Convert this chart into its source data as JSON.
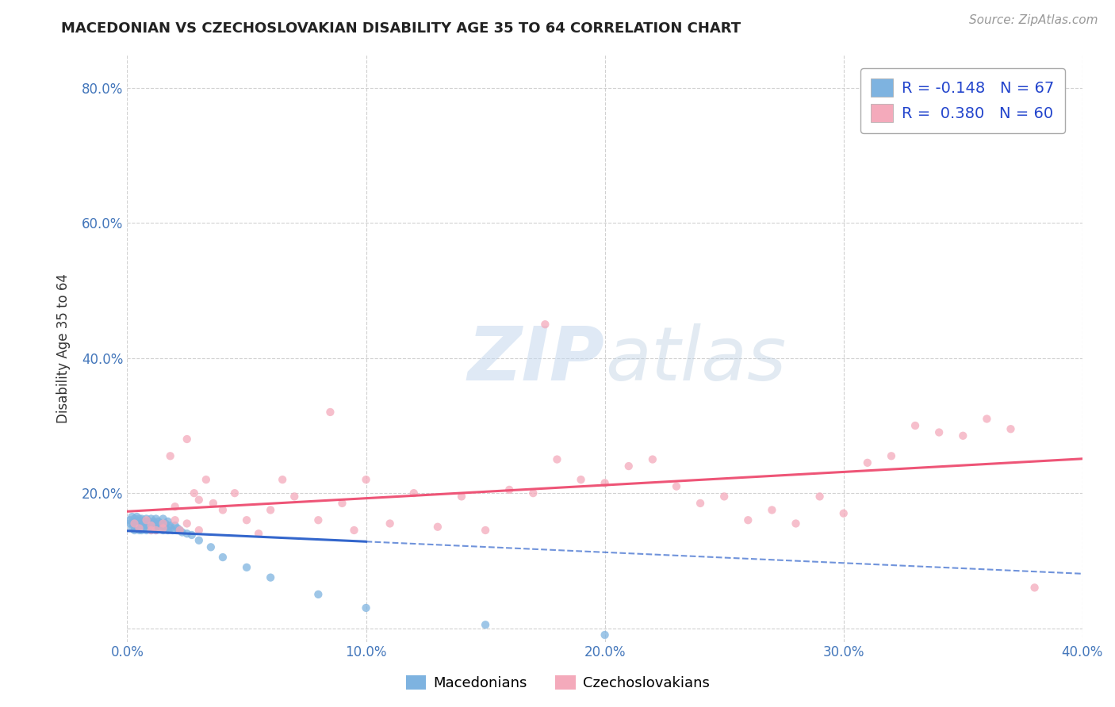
{
  "title": "MACEDONIAN VS CZECHOSLOVAKIAN DISABILITY AGE 35 TO 64 CORRELATION CHART",
  "source": "Source: ZipAtlas.com",
  "ylabel": "Disability Age 35 to 64",
  "xlabel": "",
  "xlim": [
    0.0,
    0.4
  ],
  "ylim": [
    -0.02,
    0.85
  ],
  "xtick_labels": [
    "0.0%",
    "10.0%",
    "20.0%",
    "30.0%",
    "40.0%"
  ],
  "xtick_vals": [
    0.0,
    0.1,
    0.2,
    0.3,
    0.4
  ],
  "ytick_labels": [
    "",
    "20.0%",
    "40.0%",
    "60.0%",
    "80.0%"
  ],
  "ytick_vals": [
    0.0,
    0.2,
    0.4,
    0.6,
    0.8
  ],
  "macedonian_color": "#7EB3E0",
  "czechoslovakian_color": "#F4AABB",
  "macedonian_R": -0.148,
  "macedonian_N": 67,
  "czechoslovakian_R": 0.38,
  "czechoslovakian_N": 60,
  "background_color": "#FFFFFF",
  "grid_color": "#CCCCCC",
  "mac_trend_color": "#3366CC",
  "cz_trend_color": "#EE5577",
  "macedonian_x": [
    0.001,
    0.001,
    0.002,
    0.002,
    0.002,
    0.003,
    0.003,
    0.003,
    0.003,
    0.004,
    0.004,
    0.004,
    0.004,
    0.005,
    0.005,
    0.005,
    0.005,
    0.006,
    0.006,
    0.006,
    0.006,
    0.007,
    0.007,
    0.007,
    0.008,
    0.008,
    0.008,
    0.009,
    0.009,
    0.009,
    0.01,
    0.01,
    0.01,
    0.011,
    0.011,
    0.011,
    0.012,
    0.012,
    0.012,
    0.013,
    0.013,
    0.014,
    0.014,
    0.015,
    0.015,
    0.016,
    0.016,
    0.017,
    0.017,
    0.018,
    0.018,
    0.019,
    0.02,
    0.021,
    0.022,
    0.023,
    0.025,
    0.027,
    0.03,
    0.035,
    0.04,
    0.05,
    0.06,
    0.08,
    0.1,
    0.15,
    0.2
  ],
  "macedonian_y": [
    0.155,
    0.16,
    0.148,
    0.155,
    0.165,
    0.15,
    0.158,
    0.162,
    0.145,
    0.152,
    0.158,
    0.165,
    0.148,
    0.155,
    0.162,
    0.145,
    0.158,
    0.15,
    0.155,
    0.162,
    0.145,
    0.152,
    0.158,
    0.148,
    0.155,
    0.162,
    0.145,
    0.152,
    0.158,
    0.148,
    0.155,
    0.162,
    0.145,
    0.15,
    0.158,
    0.148,
    0.155,
    0.162,
    0.145,
    0.152,
    0.158,
    0.148,
    0.155,
    0.145,
    0.162,
    0.148,
    0.155,
    0.145,
    0.158,
    0.152,
    0.148,
    0.145,
    0.152,
    0.148,
    0.145,
    0.142,
    0.14,
    0.138,
    0.13,
    0.12,
    0.105,
    0.09,
    0.075,
    0.05,
    0.03,
    0.005,
    -0.01
  ],
  "czechoslovakian_x": [
    0.003,
    0.005,
    0.008,
    0.01,
    0.012,
    0.015,
    0.018,
    0.02,
    0.022,
    0.025,
    0.028,
    0.03,
    0.033,
    0.036,
    0.04,
    0.045,
    0.05,
    0.055,
    0.06,
    0.065,
    0.07,
    0.08,
    0.085,
    0.09,
    0.095,
    0.1,
    0.11,
    0.12,
    0.13,
    0.14,
    0.15,
    0.16,
    0.17,
    0.175,
    0.18,
    0.19,
    0.2,
    0.21,
    0.22,
    0.23,
    0.24,
    0.25,
    0.26,
    0.27,
    0.28,
    0.29,
    0.3,
    0.31,
    0.32,
    0.33,
    0.34,
    0.35,
    0.36,
    0.37,
    0.38,
    0.01,
    0.015,
    0.02,
    0.025,
    0.03
  ],
  "czechoslovakian_y": [
    0.155,
    0.148,
    0.16,
    0.152,
    0.145,
    0.148,
    0.255,
    0.18,
    0.145,
    0.28,
    0.2,
    0.19,
    0.22,
    0.185,
    0.175,
    0.2,
    0.16,
    0.14,
    0.175,
    0.22,
    0.195,
    0.16,
    0.32,
    0.185,
    0.145,
    0.22,
    0.155,
    0.2,
    0.15,
    0.195,
    0.145,
    0.205,
    0.2,
    0.45,
    0.25,
    0.22,
    0.215,
    0.24,
    0.25,
    0.21,
    0.185,
    0.195,
    0.16,
    0.175,
    0.155,
    0.195,
    0.17,
    0.245,
    0.255,
    0.3,
    0.29,
    0.285,
    0.31,
    0.295,
    0.06,
    0.145,
    0.155,
    0.16,
    0.155,
    0.145
  ]
}
